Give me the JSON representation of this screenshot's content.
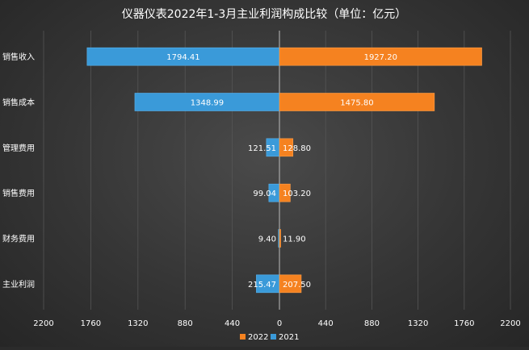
{
  "chart_data": {
    "type": "bar",
    "orientation": "horizontal-butterfly",
    "title": "仪器仪表2022年1-3月主业利润构成比较（单位：亿元）",
    "categories": [
      "销售收入",
      "销售成本",
      "管理费用",
      "销售费用",
      "财务费用",
      "主业利润"
    ],
    "series": [
      {
        "name": "2022",
        "color": "#f58220",
        "direction": "right",
        "values": [
          1927.2,
          1475.8,
          128.8,
          103.2,
          11.9,
          207.5
        ]
      },
      {
        "name": "2021",
        "color": "#3a9ad9",
        "direction": "left",
        "values": [
          1794.41,
          1348.99,
          121.51,
          99.04,
          9.4,
          215.47
        ]
      }
    ],
    "value_labels": {
      "2022": [
        "1927.20",
        "1475.80",
        "128.80",
        "103.20",
        "11.90",
        "207.50"
      ],
      "2021": [
        "1794.41",
        "1348.99",
        "121.51",
        "99.04",
        "9.40",
        "215.47"
      ]
    },
    "xlim": [
      -2200,
      2200
    ],
    "xticks": [
      -2200,
      -1760,
      -1320,
      -880,
      -440,
      0,
      440,
      880,
      1320,
      1760,
      2200
    ],
    "xtick_labels": [
      "2200",
      "1760",
      "1320",
      "880",
      "440",
      "0",
      "440",
      "880",
      "1320",
      "1760",
      "2200"
    ],
    "grid": true,
    "legend_position": "bottom-center",
    "background": "#333333",
    "gridline_color": "#555555",
    "text_color": "#ffffff"
  }
}
